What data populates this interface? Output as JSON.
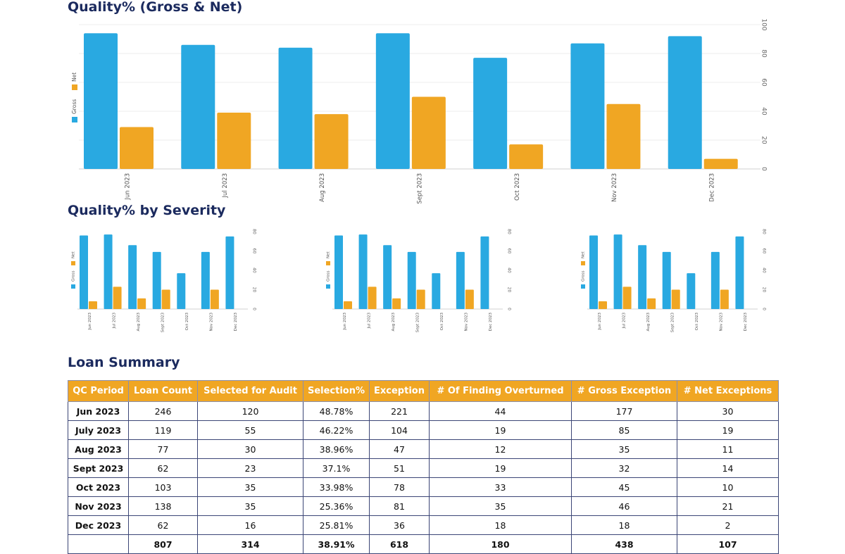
{
  "titles": {
    "main_chart": "Quality% (Gross & Net)",
    "severity": "Quality% by Severity",
    "loan_summary": "Loan Summary"
  },
  "colors": {
    "gross": "#29a9e1",
    "net": "#f0a623",
    "title": "#1b2a5e",
    "header_bg": "#f0a623"
  },
  "chart_data": [
    {
      "type": "bar",
      "title": "Quality% (Gross & Net)",
      "categories": [
        "Jun 2023",
        "Jul 2023",
        "Aug 2023",
        "Sept 2023",
        "Oct 2023",
        "Nov 2023",
        "Dec 2023"
      ],
      "series": [
        {
          "name": "Gross",
          "color": "#29a9e1",
          "values": [
            94,
            86,
            84,
            94,
            77,
            87,
            92
          ]
        },
        {
          "name": "Net",
          "color": "#f0a623",
          "values": [
            29,
            39,
            38,
            50,
            17,
            45,
            7
          ]
        }
      ],
      "yticks": [
        0,
        20,
        40,
        60,
        80,
        100
      ],
      "ylim": [
        0,
        100
      ],
      "y_axis_side": "right",
      "legend_position": "left",
      "grid": true
    },
    {
      "type": "bar",
      "categories": [
        "Jun 2023",
        "Jul 2023",
        "Aug 2023",
        "Sept 2023",
        "Oct 2023",
        "Nov 2023",
        "Dec 2023"
      ],
      "series": [
        {
          "name": "Gross",
          "color": "#29a9e1",
          "values": [
            76,
            77,
            66,
            59,
            37,
            59,
            75
          ]
        },
        {
          "name": "Net",
          "color": "#f0a623",
          "values": [
            8,
            23,
            11,
            20,
            0,
            20,
            0
          ]
        }
      ],
      "yticks": [
        0,
        20,
        40,
        60,
        80
      ],
      "ylim": [
        0,
        80
      ],
      "y_axis_side": "right",
      "legend_position": "left"
    },
    {
      "type": "bar",
      "categories": [
        "Jun 2023",
        "Jul 2023",
        "Aug 2023",
        "Sept 2023",
        "Oct 2023",
        "Nov 2023",
        "Dec 2023"
      ],
      "series": [
        {
          "name": "Gross",
          "color": "#29a9e1",
          "values": [
            76,
            77,
            66,
            59,
            37,
            59,
            75
          ]
        },
        {
          "name": "Net",
          "color": "#f0a623",
          "values": [
            8,
            23,
            11,
            20,
            0,
            20,
            0
          ]
        }
      ],
      "yticks": [
        0,
        20,
        40,
        60,
        80
      ],
      "ylim": [
        0,
        80
      ],
      "y_axis_side": "right",
      "legend_position": "left"
    },
    {
      "type": "bar",
      "categories": [
        "Jun 2023",
        "Jul 2023",
        "Aug 2023",
        "Sept 2023",
        "Oct 2023",
        "Nov 2023",
        "Dec 2023"
      ],
      "series": [
        {
          "name": "Gross",
          "color": "#29a9e1",
          "values": [
            76,
            77,
            66,
            59,
            37,
            59,
            75
          ]
        },
        {
          "name": "Net",
          "color": "#f0a623",
          "values": [
            8,
            23,
            11,
            20,
            0,
            20,
            0
          ]
        }
      ],
      "yticks": [
        0,
        20,
        40,
        60,
        80
      ],
      "ylim": [
        0,
        80
      ],
      "y_axis_side": "right",
      "legend_position": "left"
    },
    {
      "type": "table",
      "title": "Loan Summary",
      "headers": [
        "QC Period",
        "Loan Count",
        "Selected for Audit",
        "Selection%",
        "Exception",
        "# Of Finding Overturned",
        "# Gross Exception",
        "# Net Exceptions"
      ],
      "rows": [
        [
          "Jun 2023",
          "246",
          "120",
          "48.78%",
          "221",
          "44",
          "177",
          "30"
        ],
        [
          "July 2023",
          "119",
          "55",
          "46.22%",
          "104",
          "19",
          "85",
          "19"
        ],
        [
          "Aug 2023",
          "77",
          "30",
          "38.96%",
          "47",
          "12",
          "35",
          "11"
        ],
        [
          "Sept 2023",
          "62",
          "23",
          "37.1%",
          "51",
          "19",
          "32",
          "14"
        ],
        [
          "Oct 2023",
          "103",
          "35",
          "33.98%",
          "78",
          "33",
          "45",
          "10"
        ],
        [
          "Nov 2023",
          "138",
          "35",
          "25.36%",
          "81",
          "35",
          "46",
          "21"
        ],
        [
          "Dec 2023",
          "62",
          "16",
          "25.81%",
          "36",
          "18",
          "18",
          "2"
        ]
      ],
      "totals": [
        "",
        "807",
        "314",
        "38.91%",
        "618",
        "180",
        "438",
        "107"
      ]
    }
  ]
}
